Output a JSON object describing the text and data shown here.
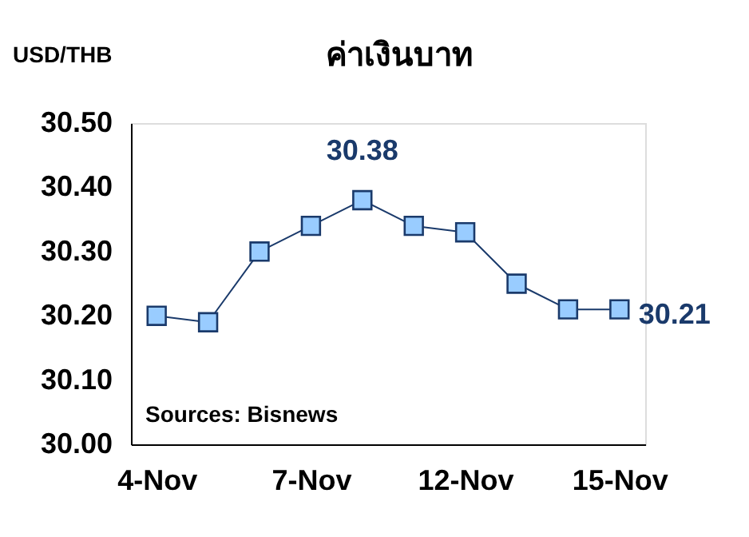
{
  "chart_data": {
    "type": "line",
    "title": "ค่าเงินบาท",
    "ylabel": "USD/THB",
    "categories": [
      "4-Nov",
      null,
      null,
      "7-Nov",
      null,
      null,
      "12-Nov",
      null,
      null,
      "15-Nov"
    ],
    "series": [
      {
        "color": "#1a3a6b",
        "values": [
          30.2,
          30.19,
          30.3,
          30.34,
          30.38,
          30.34,
          30.33,
          30.25,
          30.21,
          30.21
        ],
        "value_labels": [
          null,
          null,
          null,
          null,
          "30.38",
          null,
          null,
          null,
          null,
          "30.21"
        ]
      }
    ],
    "ylim": [
      30.0,
      30.5
    ],
    "yticks": [
      {
        "value": 30.0,
        "label": "30.00"
      },
      {
        "value": 30.1,
        "label": "30.10"
      },
      {
        "value": 30.2,
        "label": "30.20"
      },
      {
        "value": 30.3,
        "label": "30.30"
      },
      {
        "value": 30.4,
        "label": "30.40"
      },
      {
        "value": 30.5,
        "label": "30.50"
      }
    ],
    "grid": false,
    "marker": "square",
    "line_style": "solid",
    "annotations": [
      "Sources: Bisnews"
    ]
  }
}
